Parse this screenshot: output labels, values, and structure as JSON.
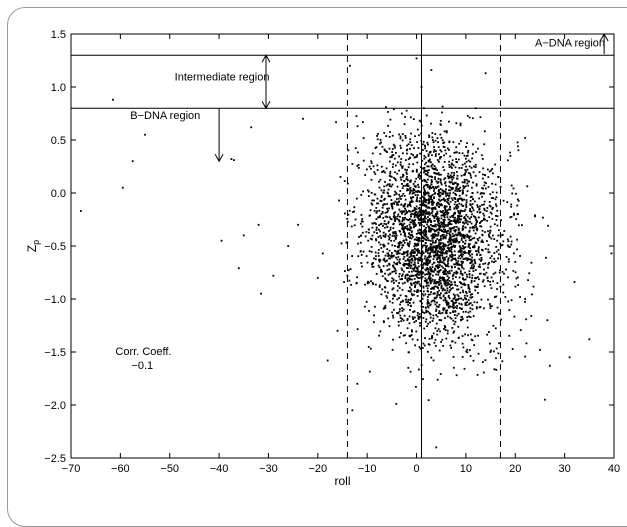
{
  "chart_data": {
    "type": "scatter",
    "xlabel": "roll",
    "ylabel": "Z",
    "ylabel_subscript": "p",
    "xlim": [
      -70,
      40
    ],
    "ylim": [
      -2.5,
      1.5
    ],
    "x_ticks": [
      -70,
      -60,
      -50,
      -40,
      -30,
      -20,
      -10,
      0,
      10,
      20,
      30,
      40
    ],
    "y_ticks": [
      1.5,
      1.0,
      0.5,
      0.0,
      -0.5,
      -1.0,
      -1.5,
      -2.0,
      -2.5
    ],
    "x_tick_labels": [
      "−70",
      "−60",
      "−50",
      "−40",
      "−30",
      "−20",
      "−10",
      "0",
      "10",
      "20",
      "30",
      "40"
    ],
    "y_tick_labels": [
      "1.5",
      "1.0",
      "0.5",
      "0.0",
      "−0.5",
      "−1.0",
      "−1.5",
      "−2.0",
      "−2.5"
    ],
    "grid": false,
    "marker_color": "#000000",
    "reference_lines": [
      {
        "orientation": "horizontal",
        "value": 1.3,
        "style": "solid"
      },
      {
        "orientation": "horizontal",
        "value": 0.8,
        "style": "solid"
      },
      {
        "orientation": "vertical",
        "value": 1,
        "style": "solid"
      },
      {
        "orientation": "vertical",
        "value": -14,
        "style": "dashed"
      },
      {
        "orientation": "vertical",
        "value": 17,
        "style": "dashed"
      }
    ],
    "regions": [
      {
        "label": "A−DNA region",
        "label_x": 24,
        "label_y": 1.38,
        "arrow": {
          "x": 38,
          "from_y": 1.31,
          "to_y": 1.5,
          "double": false
        }
      },
      {
        "label": "Intermediate region",
        "label_x": -49,
        "label_y": 1.06,
        "arrow": {
          "x": -30.5,
          "from_y": 1.3,
          "to_y": 0.8,
          "double": true
        }
      },
      {
        "label": "B−DNA region",
        "label_x": -58,
        "label_y": 0.7,
        "arrow": {
          "x": -40,
          "from_y": 0.8,
          "to_y": 0.3,
          "double": false
        }
      }
    ],
    "annotation": {
      "line1": "Corr. Coeff.",
      "line2": "−0.1",
      "x": -61,
      "y": -1.53
    },
    "scatter_generator": {
      "count": 3200,
      "x_mean": 3.5,
      "x_sd": 6.8,
      "y_mean": -0.42,
      "y_sd": 0.48,
      "correlation": -0.1,
      "x_range": [
        -17,
        27
      ],
      "y_range": [
        -2.45,
        0.82
      ]
    },
    "outliers": [
      [
        -68,
        -0.17
      ],
      [
        -61.5,
        0.88
      ],
      [
        -59.5,
        0.05
      ],
      [
        -57.5,
        0.3
      ],
      [
        -55,
        0.55
      ],
      [
        -39.5,
        -0.45
      ],
      [
        -37.5,
        0.32
      ],
      [
        -37,
        0.31
      ],
      [
        -35,
        -0.4
      ],
      [
        -33.5,
        0.62
      ],
      [
        -32,
        -0.3
      ],
      [
        -31.5,
        -0.95
      ],
      [
        -36,
        -0.71
      ],
      [
        -29,
        -0.78
      ],
      [
        -26,
        -0.5
      ],
      [
        -24,
        -0.3
      ],
      [
        -23,
        0.7
      ],
      [
        -20,
        -0.8
      ],
      [
        -19,
        -0.57
      ],
      [
        -18,
        -1.58
      ],
      [
        -16,
        -1.3
      ],
      [
        -14,
        -0.78
      ],
      [
        -13.5,
        1.2
      ],
      [
        -13,
        -2.05
      ],
      [
        -12,
        -1.8
      ],
      [
        0,
        1.27
      ],
      [
        1,
        1.0
      ],
      [
        1.5,
        0.8
      ],
      [
        3,
        1.16
      ],
      [
        4,
        -2.4
      ],
      [
        14,
        1.13
      ],
      [
        20,
        -0.65
      ],
      [
        22,
        -1.0
      ],
      [
        25,
        -1.48
      ],
      [
        26,
        -1.95
      ],
      [
        26.5,
        -1.2
      ],
      [
        27,
        -1.63
      ],
      [
        31,
        -1.55
      ],
      [
        32,
        -0.84
      ],
      [
        35,
        -1.38
      ],
      [
        39.5,
        -0.57
      ],
      [
        22,
        0.52
      ],
      [
        24,
        -0.22
      ],
      [
        19,
        0.35
      ]
    ]
  }
}
